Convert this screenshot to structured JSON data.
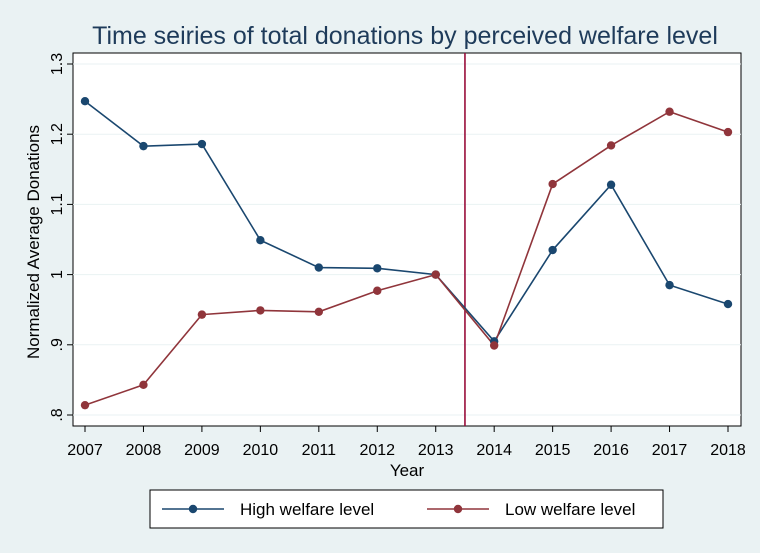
{
  "chart_data": {
    "type": "line",
    "title": "Time seiries of total donations by perceived welfare level",
    "xlabel": "Year",
    "ylabel": "Normalized Average Donations",
    "x": [
      2007,
      2008,
      2009,
      2010,
      2011,
      2012,
      2013,
      2014,
      2015,
      2016,
      2017,
      2018
    ],
    "xlim": [
      2007,
      2018
    ],
    "ylim": [
      0.8,
      1.3
    ],
    "yticks": [
      ".8",
      ".9",
      "1",
      "1.1",
      "1.2",
      "1.3"
    ],
    "ytick_values": [
      0.8,
      0.9,
      1.0,
      1.1,
      1.2,
      1.3
    ],
    "grid": true,
    "reference_line": {
      "x": 2013.5,
      "color": "#990c3a"
    },
    "legend_position": "bottom",
    "series": [
      {
        "name": "High welfare level",
        "color": "#1a476f",
        "values": [
          1.247,
          1.183,
          1.186,
          1.049,
          1.01,
          1.009,
          1.0,
          0.905,
          1.035,
          1.128,
          0.985,
          0.958
        ]
      },
      {
        "name": "Low welfare level",
        "color": "#90353b",
        "values": [
          0.814,
          0.843,
          0.943,
          0.949,
          0.947,
          0.977,
          1.0,
          0.899,
          1.129,
          1.184,
          1.232,
          1.203
        ]
      }
    ]
  }
}
